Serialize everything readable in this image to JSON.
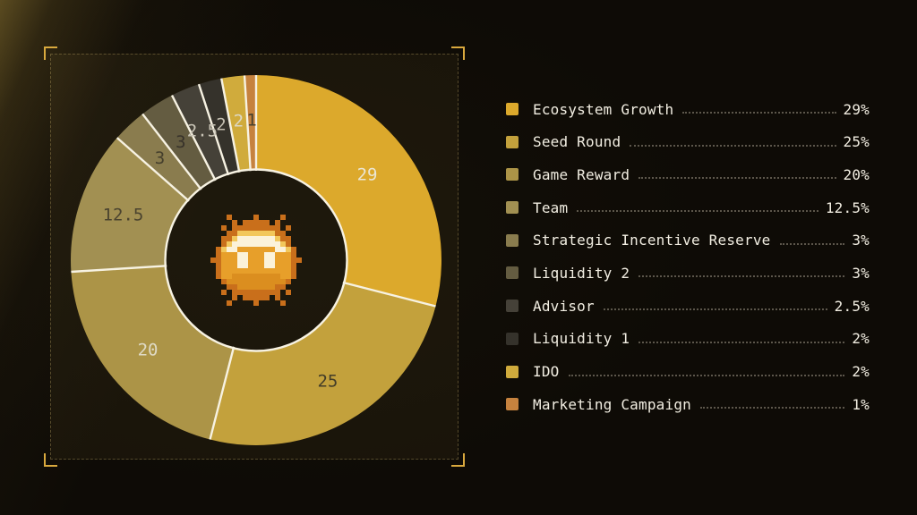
{
  "chart_data": {
    "type": "pie",
    "variant": "donut",
    "start_angle_deg": 0,
    "direction": "clockwise",
    "center_icon": "pixel-coin-face",
    "legend_position": "right",
    "segments": [
      {
        "label": "Ecosystem Growth",
        "value": 29,
        "percent_text": "29%",
        "slice_label": "29",
        "color": "#DCA92C",
        "slice_label_color": "#EBE6D4"
      },
      {
        "label": "Seed Round",
        "value": 25,
        "percent_text": "25%",
        "slice_label": "25",
        "color": "#C3A13C",
        "slice_label_color": "#423C28"
      },
      {
        "label": "Game Reward",
        "value": 20,
        "percent_text": "20%",
        "slice_label": "20",
        "color": "#AC9447",
        "slice_label_color": "#DFDAC6"
      },
      {
        "label": "Team",
        "value": 12.5,
        "percent_text": "12.5%",
        "slice_label": "12.5",
        "color": "#A29052",
        "slice_label_color": "#4A432F"
      },
      {
        "label": "Strategic Incentive Reserve",
        "value": 3,
        "percent_text": "3%",
        "slice_label": "3",
        "color": "#8A7C4E",
        "slice_label_color": "#443E2C"
      },
      {
        "label": "Liquidity 2",
        "value": 3,
        "percent_text": "3%",
        "slice_label": "3",
        "color": "#645C41",
        "slice_label_color": "#37322A"
      },
      {
        "label": "Advisor",
        "value": 2.5,
        "percent_text": "2.5%",
        "slice_label": "2.5",
        "color": "#454138",
        "slice_label_color": "#C9C4B6"
      },
      {
        "label": "Liquidity 1",
        "value": 2,
        "percent_text": "2%",
        "slice_label": "2",
        "color": "#35322B",
        "slice_label_color": "#C4BFB1"
      },
      {
        "label": "IDO",
        "value": 2,
        "percent_text": "2%",
        "slice_label": "2",
        "color": "#D0AB3C",
        "slice_label_color": "#DDD8C5"
      },
      {
        "label": "Marketing Campaign",
        "value": 1,
        "percent_text": "1%",
        "slice_label": "1",
        "color": "#C6823E",
        "slice_label_color": "#47412F"
      }
    ]
  }
}
